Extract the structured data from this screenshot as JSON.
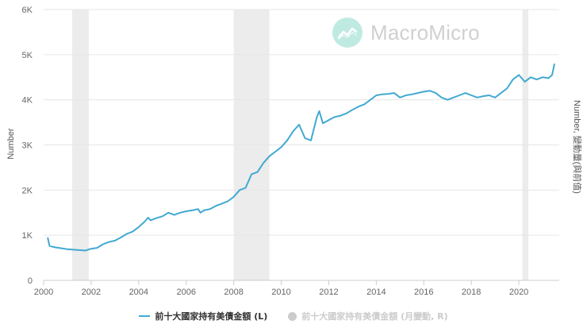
{
  "watermark": {
    "text": "MacroMicro",
    "icon": "chart-line-icon"
  },
  "chart_data": {
    "type": "line",
    "xlim": [
      2000,
      2021.7
    ],
    "ylim": [
      0,
      6000
    ],
    "ylabel": "Number",
    "y2label": "Number, 變動量(與前值)",
    "x_ticks": [
      2000,
      2002,
      2004,
      2006,
      2008,
      2010,
      2012,
      2014,
      2016,
      2018,
      2020
    ],
    "x_tick_labels": [
      "2000",
      "2002",
      "2004",
      "2006",
      "2008",
      "2010",
      "2012",
      "2014",
      "2016",
      "2018",
      "2020"
    ],
    "y_ticks": [
      0,
      1000,
      2000,
      3000,
      4000,
      5000,
      6000
    ],
    "y_tick_labels": [
      "0",
      "1K",
      "2K",
      "3K",
      "4K",
      "5K",
      "6K"
    ],
    "recession_bands": [
      [
        2001.2,
        2001.9
      ],
      [
        2008.0,
        2009.5
      ],
      [
        2020.15,
        2020.4
      ]
    ],
    "grid": true,
    "series": [
      {
        "name": "前十大國家持有美債金額 (L)",
        "color": "#41a9d1",
        "visible": true,
        "x": [
          2000.17,
          2000.25,
          2000.5,
          2000.75,
          2001.0,
          2001.25,
          2001.5,
          2001.75,
          2002.0,
          2002.25,
          2002.5,
          2002.75,
          2003.0,
          2003.25,
          2003.5,
          2003.75,
          2004.0,
          2004.25,
          2004.4,
          2004.5,
          2004.75,
          2005.0,
          2005.25,
          2005.5,
          2005.75,
          2006.0,
          2006.25,
          2006.5,
          2006.6,
          2006.75,
          2007.0,
          2007.25,
          2007.5,
          2007.75,
          2008.0,
          2008.25,
          2008.5,
          2008.75,
          2009.0,
          2009.25,
          2009.5,
          2009.75,
          2010.0,
          2010.25,
          2010.5,
          2010.75,
          2011.0,
          2011.25,
          2011.5,
          2011.6,
          2011.75,
          2011.9,
          2012.0,
          2012.25,
          2012.5,
          2012.75,
          2013.0,
          2013.25,
          2013.5,
          2013.75,
          2014.0,
          2014.25,
          2014.5,
          2014.75,
          2015.0,
          2015.25,
          2015.5,
          2015.75,
          2016.0,
          2016.25,
          2016.5,
          2016.75,
          2017.0,
          2017.25,
          2017.5,
          2017.75,
          2018.0,
          2018.25,
          2018.5,
          2018.75,
          2019.0,
          2019.25,
          2019.5,
          2019.75,
          2020.0,
          2020.25,
          2020.5,
          2020.75,
          2021.0,
          2021.25,
          2021.4,
          2021.5
        ],
        "values": [
          950,
          760,
          730,
          710,
          690,
          680,
          670,
          660,
          700,
          720,
          800,
          850,
          880,
          950,
          1030,
          1080,
          1180,
          1300,
          1390,
          1330,
          1380,
          1420,
          1500,
          1450,
          1500,
          1530,
          1550,
          1580,
          1500,
          1550,
          1580,
          1650,
          1700,
          1750,
          1850,
          2000,
          2050,
          2350,
          2400,
          2600,
          2750,
          2850,
          2950,
          3100,
          3300,
          3450,
          3150,
          3100,
          3620,
          3750,
          3480,
          3520,
          3550,
          3620,
          3650,
          3700,
          3780,
          3850,
          3900,
          4000,
          4100,
          4120,
          4130,
          4150,
          4050,
          4100,
          4120,
          4150,
          4180,
          4200,
          4150,
          4050,
          4000,
          4050,
          4100,
          4150,
          4100,
          4050,
          4080,
          4100,
          4050,
          4150,
          4250,
          4450,
          4550,
          4400,
          4500,
          4450,
          4500,
          4480,
          4550,
          4800
        ]
      },
      {
        "name": "前十大國家持有美債金額 (月變動, R)",
        "color": "#cccccc",
        "visible": false
      }
    ],
    "legend_position": "bottom"
  }
}
